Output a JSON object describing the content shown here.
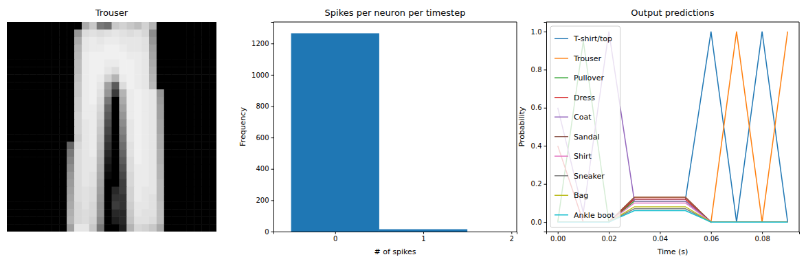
{
  "chart_data": [
    {
      "type": "image",
      "title": "Trouser",
      "tick_labels": false,
      "zlim": [
        0,
        255
      ],
      "values": [
        [
          0,
          0,
          0,
          0,
          0,
          0,
          0,
          0,
          0,
          0,
          170,
          200,
          120,
          110,
          200,
          210,
          200,
          190,
          210,
          180,
          0,
          0,
          0,
          0,
          0,
          0,
          0,
          0
        ],
        [
          0,
          0,
          0,
          0,
          0,
          0,
          0,
          0,
          0,
          150,
          220,
          225,
          220,
          225,
          230,
          225,
          220,
          225,
          215,
          140,
          0,
          0,
          0,
          0,
          0,
          0,
          0,
          0
        ],
        [
          0,
          0,
          0,
          0,
          0,
          0,
          0,
          0,
          0,
          170,
          230,
          235,
          230,
          235,
          235,
          230,
          230,
          230,
          225,
          150,
          0,
          0,
          0,
          0,
          0,
          0,
          0,
          0
        ],
        [
          0,
          0,
          0,
          0,
          0,
          0,
          0,
          0,
          0,
          180,
          230,
          235,
          235,
          240,
          240,
          235,
          230,
          230,
          225,
          160,
          0,
          0,
          0,
          0,
          0,
          0,
          0,
          0
        ],
        [
          0,
          0,
          0,
          0,
          0,
          0,
          0,
          0,
          0,
          185,
          235,
          240,
          240,
          240,
          240,
          240,
          235,
          235,
          230,
          165,
          0,
          0,
          0,
          0,
          0,
          0,
          0,
          0
        ],
        [
          0,
          0,
          0,
          0,
          0,
          0,
          0,
          0,
          0,
          190,
          235,
          240,
          240,
          235,
          235,
          240,
          240,
          235,
          230,
          170,
          0,
          0,
          0,
          0,
          0,
          0,
          0,
          0
        ],
        [
          0,
          0,
          0,
          0,
          0,
          0,
          0,
          0,
          0,
          190,
          235,
          240,
          240,
          230,
          220,
          240,
          240,
          235,
          230,
          175,
          0,
          0,
          0,
          0,
          0,
          0,
          0,
          0
        ],
        [
          0,
          0,
          0,
          0,
          0,
          0,
          0,
          0,
          0,
          195,
          235,
          240,
          235,
          210,
          180,
          235,
          240,
          235,
          230,
          180,
          0,
          0,
          0,
          0,
          0,
          0,
          0,
          0
        ],
        [
          0,
          0,
          0,
          0,
          0,
          0,
          0,
          0,
          0,
          200,
          235,
          240,
          230,
          160,
          90,
          220,
          240,
          235,
          230,
          185,
          0,
          0,
          0,
          0,
          0,
          0,
          0,
          0
        ],
        [
          0,
          0,
          0,
          0,
          0,
          0,
          0,
          0,
          0,
          200,
          235,
          240,
          225,
          150,
          60,
          180,
          235,
          240,
          235,
          230,
          150,
          0,
          0,
          0,
          0,
          0,
          0,
          0
        ],
        [
          0,
          0,
          0,
          0,
          0,
          0,
          0,
          0,
          0,
          205,
          235,
          240,
          220,
          120,
          0,
          170,
          235,
          240,
          235,
          230,
          155,
          0,
          0,
          0,
          0,
          0,
          0,
          0
        ],
        [
          0,
          0,
          0,
          0,
          0,
          0,
          0,
          0,
          0,
          205,
          235,
          235,
          215,
          100,
          0,
          160,
          235,
          240,
          235,
          230,
          160,
          0,
          0,
          0,
          0,
          0,
          0,
          0
        ],
        [
          0,
          0,
          0,
          0,
          0,
          0,
          0,
          0,
          0,
          210,
          235,
          235,
          210,
          90,
          0,
          150,
          235,
          240,
          235,
          230,
          160,
          0,
          0,
          0,
          0,
          0,
          0,
          0
        ],
        [
          0,
          0,
          0,
          0,
          0,
          0,
          0,
          0,
          0,
          210,
          230,
          235,
          205,
          80,
          0,
          140,
          230,
          240,
          235,
          230,
          165,
          0,
          0,
          0,
          0,
          0,
          0,
          0
        ],
        [
          0,
          0,
          0,
          0,
          0,
          0,
          0,
          0,
          0,
          210,
          230,
          235,
          200,
          70,
          0,
          130,
          230,
          240,
          235,
          230,
          165,
          0,
          0,
          0,
          0,
          0,
          0,
          0
        ],
        [
          0,
          0,
          0,
          0,
          0,
          0,
          0,
          0,
          0,
          205,
          230,
          235,
          195,
          60,
          0,
          120,
          230,
          240,
          235,
          230,
          170,
          0,
          0,
          0,
          0,
          0,
          0,
          0
        ],
        [
          0,
          0,
          0,
          0,
          0,
          0,
          0,
          0,
          100,
          215,
          230,
          235,
          190,
          50,
          0,
          110,
          225,
          240,
          235,
          230,
          170,
          0,
          0,
          0,
          0,
          0,
          0,
          0
        ],
        [
          0,
          0,
          0,
          0,
          0,
          0,
          0,
          0,
          120,
          220,
          230,
          235,
          185,
          40,
          0,
          100,
          225,
          240,
          235,
          230,
          175,
          0,
          0,
          0,
          0,
          0,
          0,
          0
        ],
        [
          0,
          0,
          0,
          0,
          0,
          0,
          0,
          0,
          130,
          220,
          230,
          230,
          180,
          30,
          0,
          90,
          220,
          240,
          235,
          230,
          175,
          0,
          0,
          0,
          0,
          0,
          0,
          0
        ],
        [
          0,
          0,
          0,
          0,
          0,
          0,
          0,
          0,
          140,
          220,
          230,
          230,
          175,
          20,
          0,
          80,
          220,
          235,
          235,
          230,
          180,
          0,
          0,
          0,
          0,
          0,
          0,
          0
        ],
        [
          0,
          0,
          0,
          0,
          0,
          0,
          0,
          0,
          150,
          220,
          230,
          225,
          170,
          10,
          0,
          70,
          215,
          235,
          235,
          230,
          180,
          0,
          0,
          0,
          0,
          0,
          0,
          0
        ],
        [
          0,
          0,
          0,
          0,
          0,
          0,
          0,
          0,
          155,
          220,
          230,
          225,
          165,
          0,
          0,
          60,
          215,
          235,
          235,
          230,
          185,
          0,
          0,
          0,
          0,
          0,
          0,
          0
        ],
        [
          0,
          0,
          0,
          0,
          0,
          0,
          0,
          0,
          160,
          220,
          225,
          220,
          160,
          0,
          40,
          60,
          210,
          235,
          230,
          230,
          185,
          0,
          0,
          0,
          0,
          0,
          0,
          0
        ],
        [
          0,
          0,
          0,
          0,
          0,
          0,
          0,
          0,
          165,
          220,
          225,
          220,
          155,
          0,
          50,
          50,
          210,
          235,
          230,
          225,
          185,
          0,
          0,
          0,
          0,
          0,
          0,
          0
        ],
        [
          0,
          0,
          0,
          0,
          0,
          0,
          0,
          0,
          170,
          215,
          225,
          215,
          150,
          0,
          60,
          50,
          205,
          230,
          230,
          225,
          190,
          0,
          0,
          0,
          0,
          0,
          0,
          0
        ],
        [
          0,
          0,
          0,
          0,
          0,
          0,
          0,
          0,
          175,
          215,
          220,
          215,
          150,
          0,
          40,
          40,
          200,
          230,
          225,
          225,
          190,
          0,
          0,
          0,
          0,
          0,
          0,
          0
        ],
        [
          0,
          0,
          0,
          0,
          0,
          0,
          0,
          0,
          180,
          215,
          220,
          210,
          140,
          0,
          30,
          40,
          195,
          225,
          225,
          220,
          190,
          0,
          0,
          0,
          0,
          0,
          0,
          0
        ],
        [
          0,
          0,
          0,
          0,
          0,
          0,
          0,
          0,
          160,
          230,
          230,
          200,
          120,
          0,
          0,
          30,
          180,
          215,
          210,
          200,
          170,
          0,
          0,
          0,
          0,
          0,
          0,
          0
        ]
      ]
    },
    {
      "type": "histogram",
      "title": "Spikes per neuron per timestep",
      "x_label": "# of spikes",
      "y_label": "Frequency",
      "bins": [
        -0.5,
        0.5,
        1.5
      ],
      "values": [
        1265,
        15
      ],
      "color": "#1f77b4",
      "xlim": [
        -0.7,
        2.06
      ],
      "xticks": [
        0,
        1,
        2
      ],
      "ylim": [
        0,
        1337
      ],
      "yticks": [
        0,
        200,
        400,
        600,
        800,
        1000,
        1200
      ]
    },
    {
      "type": "line",
      "title": "Output predictions",
      "x_label": "Time (s)",
      "y_label": "Probability",
      "legend": "upper left",
      "x": [
        0,
        0.01,
        0.02,
        0.03,
        0.04,
        0.05,
        0.06,
        0.07,
        0.08,
        0.09
      ],
      "series": [
        {
          "name": "T-shirt/top",
          "color": "#1f77b4",
          "values": [
            0,
            0,
            0,
            0.12,
            0.12,
            0.12,
            1.0,
            0,
            1.0,
            0
          ]
        },
        {
          "name": "Trouser",
          "color": "#ff7f0e",
          "values": [
            0,
            0,
            0,
            0.13,
            0.13,
            0.13,
            0,
            1.0,
            0,
            1.0
          ]
        },
        {
          "name": "Pullover",
          "color": "#2ca02c",
          "values": [
            0,
            0.95,
            0,
            0.11,
            0.11,
            0.11,
            0,
            0,
            0,
            0
          ]
        },
        {
          "name": "Dress",
          "color": "#d62728",
          "values": [
            0.4,
            0,
            0,
            0.12,
            0.12,
            0.12,
            0,
            0,
            0,
            0
          ]
        },
        {
          "name": "Coat",
          "color": "#9467bd",
          "values": [
            0.6,
            0.05,
            1.0,
            0.11,
            0.11,
            0.11,
            0,
            0,
            0,
            0
          ]
        },
        {
          "name": "Sandal",
          "color": "#8c564b",
          "values": [
            0,
            0,
            0,
            0.13,
            0.13,
            0.13,
            0,
            0,
            0,
            0
          ]
        },
        {
          "name": "Shirt",
          "color": "#e377c2",
          "values": [
            0,
            0,
            0,
            0.1,
            0.1,
            0.1,
            0,
            0,
            0,
            0
          ]
        },
        {
          "name": "Sneaker",
          "color": "#7f7f7f",
          "values": [
            0,
            0,
            0,
            0.07,
            0.07,
            0.07,
            0,
            0,
            0,
            0
          ]
        },
        {
          "name": "Bag",
          "color": "#bcbd22",
          "values": [
            0,
            0,
            0,
            0.08,
            0.08,
            0.08,
            0,
            0,
            0,
            0
          ]
        },
        {
          "name": "Ankle boot",
          "color": "#17becf",
          "values": [
            0,
            0,
            0,
            0.06,
            0.06,
            0.06,
            0,
            0,
            0,
            0
          ]
        }
      ],
      "xlim": [
        -0.0045,
        0.0945
      ],
      "xticks": [
        {
          "value": 0,
          "label": "0.00"
        },
        {
          "value": 0.02,
          "label": "0.02"
        },
        {
          "value": 0.04,
          "label": "0.04"
        },
        {
          "value": 0.06,
          "label": "0.06"
        },
        {
          "value": 0.08,
          "label": "0.08"
        }
      ],
      "ylim": [
        -0.05,
        1.05
      ],
      "yticks": [
        {
          "value": 0,
          "label": "0.0"
        },
        {
          "value": 0.2,
          "label": "0.2"
        },
        {
          "value": 0.4,
          "label": "0.4"
        },
        {
          "value": 0.6,
          "label": "0.6"
        },
        {
          "value": 0.8,
          "label": "0.8"
        },
        {
          "value": 1,
          "label": "1.0"
        }
      ]
    }
  ]
}
